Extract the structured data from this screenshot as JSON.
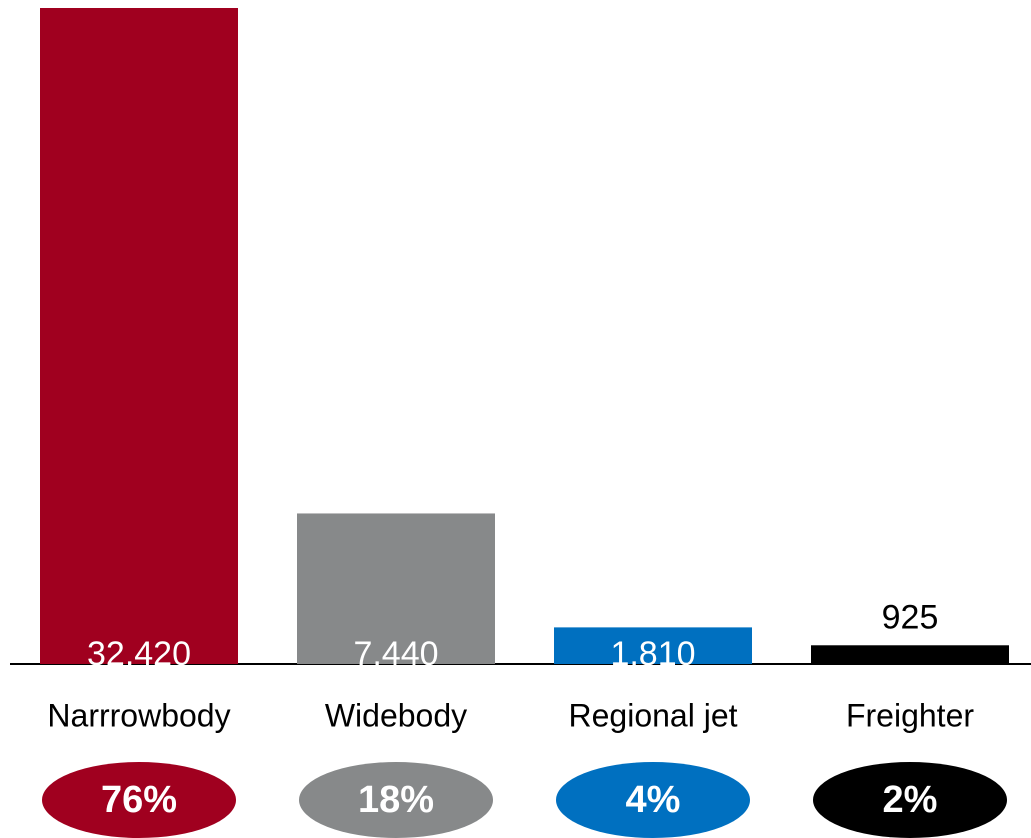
{
  "chart_data": {
    "type": "bar",
    "categories": [
      "Narrrowbody",
      "Widebody",
      "Regional jet",
      "Freighter"
    ],
    "values": [
      32420,
      7440,
      1810,
      925
    ],
    "value_labels": [
      "32,420",
      "7,440",
      "1,810",
      "925"
    ],
    "colors": [
      "#a0001f",
      "#87898a",
      "#0070c0",
      "#000000"
    ],
    "shares": [
      76,
      18,
      4,
      2
    ],
    "share_labels": [
      "76%",
      "18%",
      "4%",
      "2%"
    ],
    "ylim": [
      0,
      32420
    ]
  }
}
